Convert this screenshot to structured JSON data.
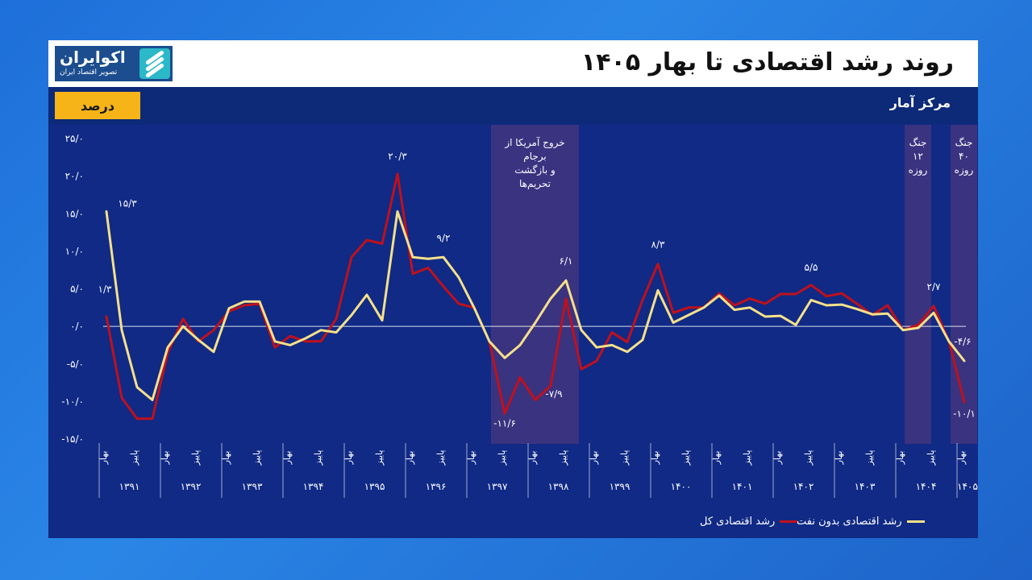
{
  "header": {
    "title": "روند رشد اقتصادی تا بهار ۱۴۰۵",
    "logo_name": "اکوایران",
    "logo_tagline": "تصویر اقتصاد ایران"
  },
  "subheader": {
    "source": "مرکز آمار",
    "unit_badge": "درصد"
  },
  "colors": {
    "background": "#102a85",
    "total_series": "#c0101c",
    "nonoil_series": "#f6e08a",
    "event_band": "#3a3380",
    "unit_badge": "#f6b418"
  },
  "legend": {
    "total_label": "رشد اقتصادی کل",
    "nonoil_label": "رشد اقتصادی بدون نفت"
  },
  "chart_data": {
    "type": "line",
    "ylim": [
      -15,
      25
    ],
    "y_ticks": [
      25,
      20,
      15,
      10,
      5,
      0,
      -5,
      -10,
      -15
    ],
    "y_tick_labels": [
      "۲۵/۰",
      "۲۰/۰",
      "۱۵/۰",
      "۱۰/۰",
      "۵/۰",
      "۰/۰",
      "-۵/۰",
      "-۱۰/۰",
      "-۱۵/۰"
    ],
    "season_labels": [
      "بهار",
      "پاییز"
    ],
    "years": [
      "۱۳۹۱",
      "۱۳۹۲",
      "۱۳۹۳",
      "۱۳۹۴",
      "۱۳۹۵",
      "۱۳۹۶",
      "۱۳۹۷",
      "۱۳۹۸",
      "۱۳۹۹",
      "۱۴۰۰",
      "۱۴۰۱",
      "۱۴۰۲",
      "۱۴۰۳",
      "۱۴۰۴",
      "۱۴۰۵"
    ],
    "series": [
      {
        "name": "رشد اقتصادی کل",
        "values": [
          1.3,
          -9.5,
          -12.3,
          -12.3,
          -3.5,
          1.0,
          -2.0,
          -0.5,
          2.0,
          2.8,
          3.0,
          -2.8,
          -1.3,
          -2.0,
          -2.0,
          1.0,
          9.2,
          11.5,
          11.0,
          20.3,
          7.0,
          7.8,
          5.3,
          3.0,
          2.5,
          -2.0,
          -11.6,
          -6.8,
          -9.8,
          -7.9,
          3.7,
          -5.7,
          -4.6,
          -0.8,
          -2.1,
          3.5,
          8.3,
          1.8,
          2.5,
          2.5,
          4.4,
          2.8,
          3.7,
          3.0,
          4.3,
          4.3,
          5.5,
          4.0,
          4.4,
          3.0,
          1.5,
          2.8,
          -0.5,
          0.2,
          2.7,
          -2.0,
          -10.1
        ]
      },
      {
        "name": "رشد اقتصادی بدون نفت",
        "values": [
          15.3,
          -0.5,
          -8.1,
          -9.8,
          -2.8,
          0.0,
          -1.8,
          -3.4,
          2.4,
          3.3,
          3.3,
          -2.0,
          -2.5,
          -1.6,
          -0.5,
          -0.8,
          1.5,
          4.2,
          0.8,
          15.3,
          9.2,
          9.0,
          9.2,
          6.5,
          2.5,
          -2.0,
          -4.2,
          -2.5,
          0.5,
          3.7,
          6.1,
          -0.5,
          -2.8,
          -2.5,
          -3.4,
          -1.8,
          4.8,
          0.5,
          1.5,
          2.5,
          4.1,
          2.2,
          2.5,
          1.3,
          1.4,
          0.2,
          3.5,
          2.8,
          2.9,
          2.3,
          1.6,
          1.7,
          -0.5,
          -0.2,
          1.8,
          -2.0,
          -4.6
        ]
      }
    ],
    "data_labels": [
      {
        "text": "۱/۳",
        "series": 0,
        "index": 0
      },
      {
        "text": "۱۵/۳",
        "series": 1,
        "index": 0
      },
      {
        "text": "۲۰/۳",
        "series": 0,
        "index": 19
      },
      {
        "text": "۹/۲",
        "series": 1,
        "index": 22
      },
      {
        "text": "-۱۱/۶",
        "series": 0,
        "index": 26
      },
      {
        "text": "-۷/۹",
        "series": 0,
        "index": 29
      },
      {
        "text": "۶/۱",
        "series": 1,
        "index": 30
      },
      {
        "text": "۸/۳",
        "series": 0,
        "index": 36
      },
      {
        "text": "۵/۵",
        "series": 0,
        "index": 46
      },
      {
        "text": "۲/۷",
        "series": 0,
        "index": 54
      },
      {
        "text": "-۴/۶",
        "series": 1,
        "index": 56
      },
      {
        "text": "-۱۰/۱",
        "series": 0,
        "index": 56
      }
    ],
    "event_bands": [
      {
        "from_index": 25,
        "to_index": 30,
        "label_lines": [
          "خروج آمریکا از",
          "برجام",
          "و بازگشت",
          "تحریم‌ها"
        ]
      },
      {
        "from_index": 52,
        "to_index": 53,
        "label_lines": [
          "جنگ",
          "۱۲",
          "روزه"
        ]
      },
      {
        "from_index": 55,
        "to_index": 56,
        "label_lines": [
          "جنگ",
          "۴۰",
          "روزه"
        ]
      }
    ],
    "grid": false,
    "legend_position": "bottom-right"
  }
}
